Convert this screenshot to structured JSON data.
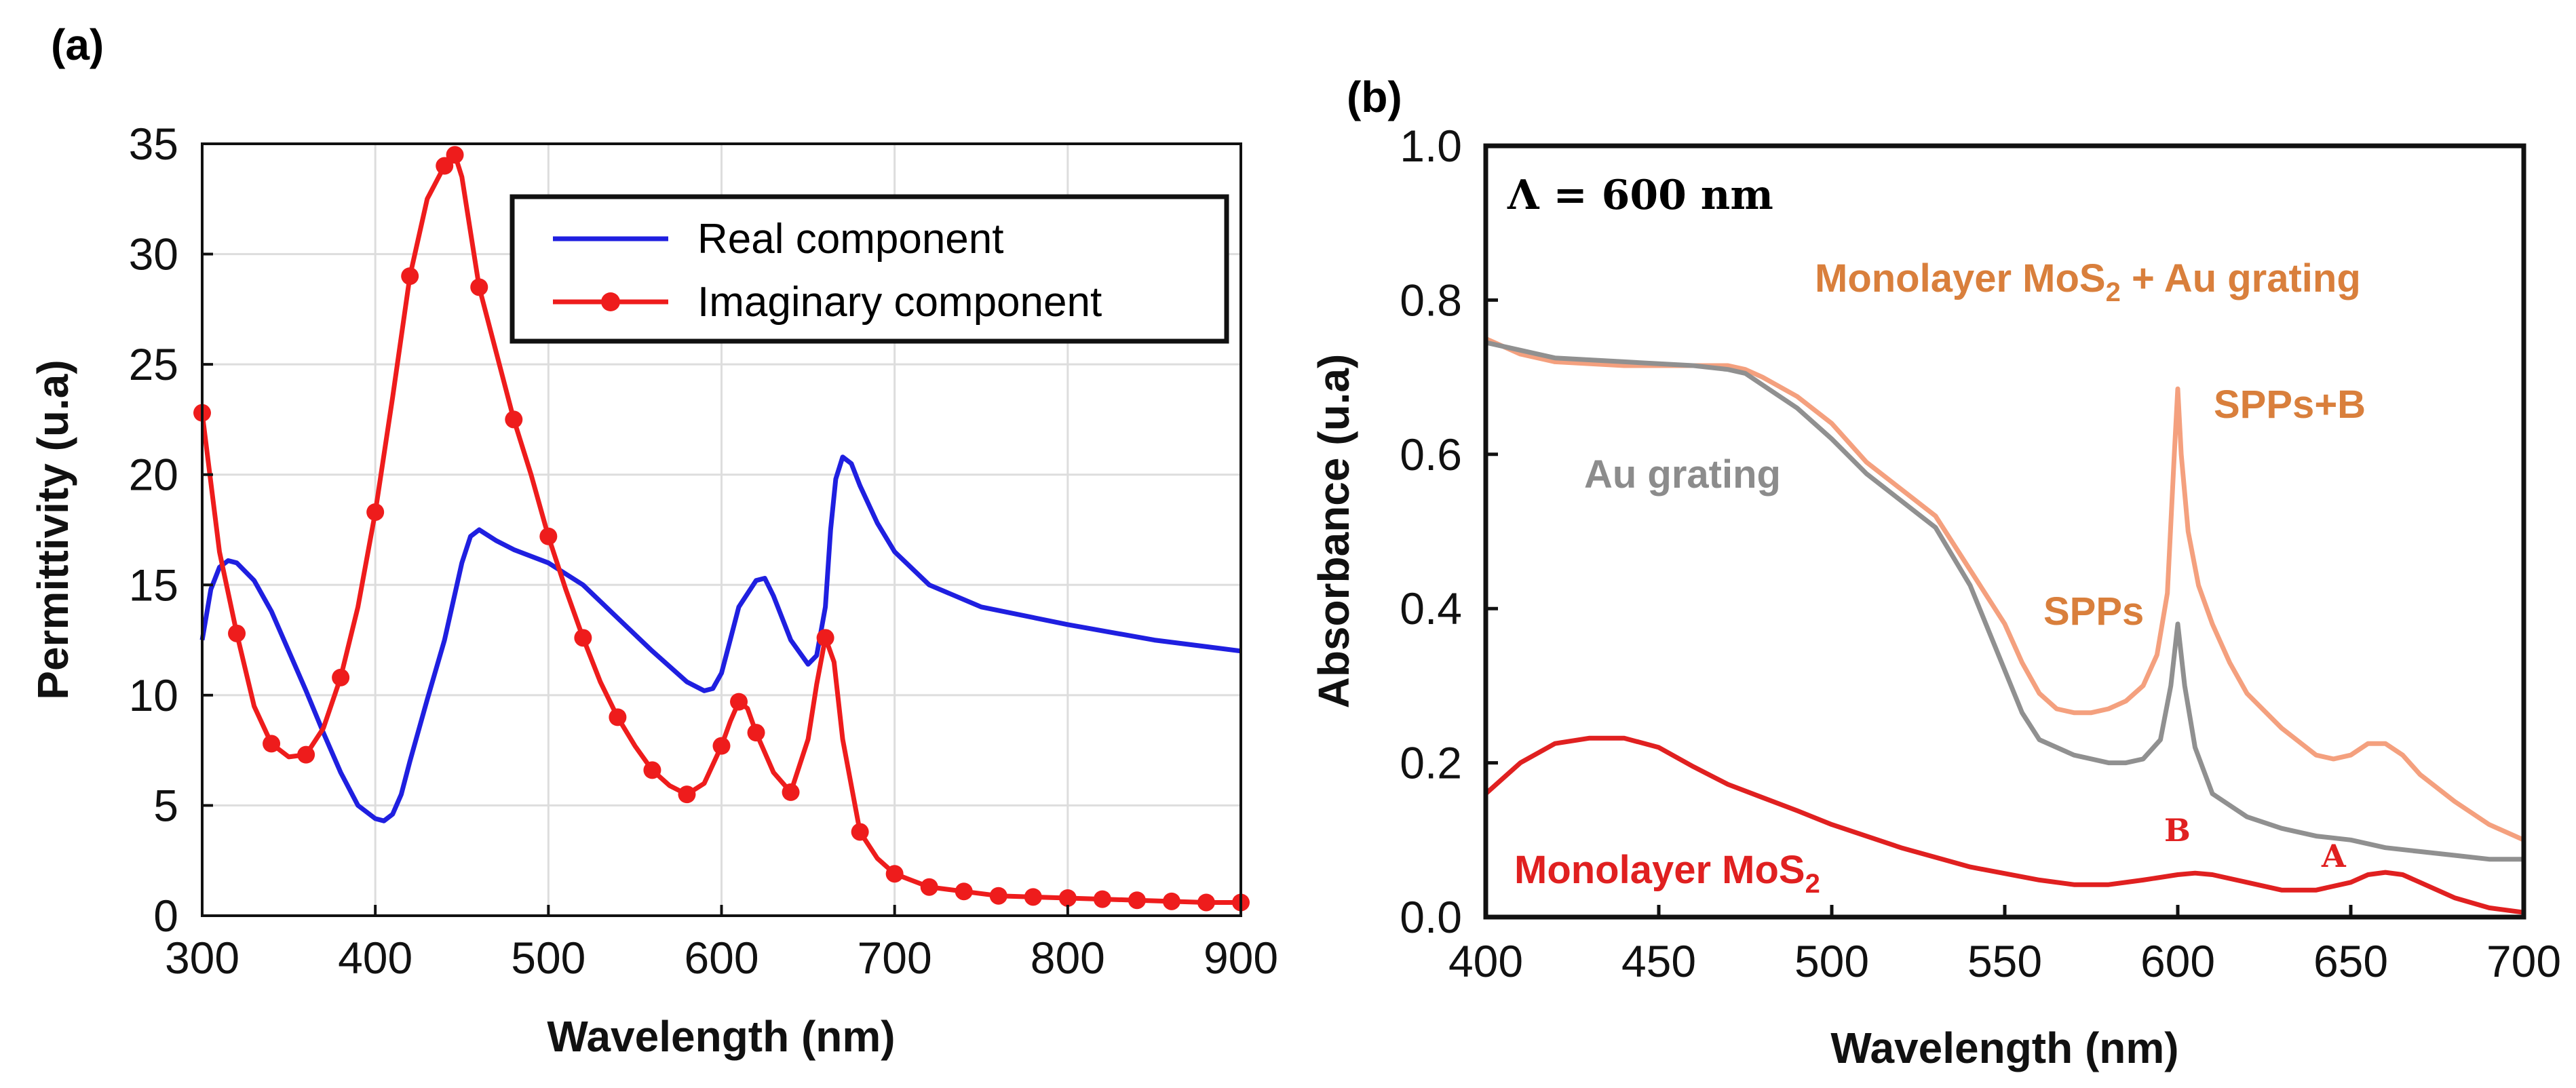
{
  "chart_data": [
    {
      "panel": "(a)",
      "type": "line",
      "title": "",
      "xlabel": "Wavelength (nm)",
      "ylabel": "Permittivity (u.a)",
      "xlim": [
        300,
        900
      ],
      "ylim": [
        0,
        35
      ],
      "xticks": [
        300,
        400,
        500,
        600,
        700,
        800,
        900
      ],
      "yticks": [
        0,
        5,
        10,
        15,
        20,
        25,
        30,
        35
      ],
      "legend": {
        "placement": "top-right",
        "entries": [
          "Real component",
          "Imaginary component"
        ]
      },
      "series": [
        {
          "name": "Real component",
          "color": "#1f1fe0",
          "marker": "none",
          "x": [
            300,
            305,
            310,
            315,
            320,
            330,
            340,
            350,
            360,
            370,
            380,
            390,
            400,
            405,
            410,
            415,
            420,
            430,
            440,
            450,
            455,
            460,
            470,
            480,
            500,
            520,
            540,
            560,
            580,
            590,
            595,
            600,
            605,
            610,
            620,
            625,
            630,
            640,
            650,
            655,
            660,
            663,
            666,
            670,
            675,
            680,
            690,
            700,
            720,
            750,
            800,
            850,
            900
          ],
          "values": [
            12.5,
            14.8,
            15.8,
            16.1,
            16.0,
            15.2,
            13.8,
            12.0,
            10.2,
            8.3,
            6.5,
            5.0,
            4.4,
            4.3,
            4.6,
            5.5,
            7.0,
            9.8,
            12.5,
            16.0,
            17.2,
            17.5,
            17.0,
            16.6,
            16.0,
            15.0,
            13.5,
            12.0,
            10.6,
            10.2,
            10.3,
            11.0,
            12.5,
            14.0,
            15.2,
            15.3,
            14.5,
            12.5,
            11.4,
            11.8,
            14.0,
            17.5,
            19.8,
            20.8,
            20.5,
            19.5,
            17.8,
            16.5,
            15.0,
            14.0,
            13.2,
            12.5,
            12.0
          ]
        },
        {
          "name": "Imaginary component",
          "color": "#ee1c1c",
          "marker": "circle",
          "x": [
            300,
            310,
            320,
            330,
            340,
            350,
            360,
            370,
            380,
            390,
            400,
            410,
            420,
            430,
            440,
            446,
            450,
            460,
            470,
            480,
            490,
            500,
            510,
            520,
            530,
            540,
            550,
            560,
            570,
            580,
            590,
            600,
            605,
            610,
            615,
            620,
            630,
            640,
            650,
            655,
            660,
            665,
            670,
            680,
            690,
            700,
            710,
            720,
            740,
            760,
            780,
            800,
            820,
            840,
            860,
            880,
            900
          ],
          "values": [
            22.8,
            16.5,
            12.8,
            9.5,
            7.8,
            7.2,
            7.3,
            8.5,
            10.8,
            14.0,
            18.3,
            23.5,
            29.0,
            32.5,
            34.0,
            34.5,
            33.5,
            28.5,
            25.5,
            22.5,
            20.0,
            17.2,
            14.8,
            12.6,
            10.6,
            9.0,
            7.7,
            6.6,
            5.9,
            5.5,
            6.0,
            7.7,
            8.8,
            9.7,
            9.4,
            8.3,
            6.5,
            5.6,
            8.0,
            10.5,
            12.6,
            11.5,
            8.0,
            3.8,
            2.6,
            1.9,
            1.6,
            1.3,
            1.1,
            0.9,
            0.85,
            0.8,
            0.75,
            0.7,
            0.65,
            0.6,
            0.6
          ],
          "marker_x": [
            300,
            320,
            340,
            360,
            380,
            400,
            420,
            440,
            446,
            460,
            480,
            500,
            520,
            540,
            560,
            580,
            600,
            610,
            620,
            640,
            660,
            680,
            700,
            720,
            740,
            760,
            780,
            800,
            820,
            840,
            860,
            880,
            900
          ],
          "marker_values": [
            22.8,
            12.8,
            7.8,
            7.3,
            10.8,
            18.3,
            29.0,
            34.0,
            34.5,
            28.5,
            22.5,
            17.2,
            12.6,
            9.0,
            6.6,
            5.5,
            7.7,
            9.7,
            8.3,
            5.6,
            12.6,
            3.8,
            1.9,
            1.3,
            1.1,
            0.9,
            0.85,
            0.8,
            0.75,
            0.7,
            0.65,
            0.6,
            0.6
          ]
        }
      ]
    },
    {
      "panel": "(b)",
      "type": "line",
      "title": "",
      "xlabel": "Wavelength (nm)",
      "ylabel": "Absorbance (u.a)",
      "xlim": [
        400,
        700
      ],
      "ylim": [
        0,
        1.0
      ],
      "xticks": [
        400,
        450,
        500,
        550,
        600,
        650,
        700
      ],
      "ytick_labels": [
        "0.0",
        "0.2",
        "0.4",
        "0.6",
        "0.8",
        "1.0"
      ],
      "yticks": [
        0,
        0.2,
        0.4,
        0.6,
        0.8,
        1.0
      ],
      "inset_text": "Λ = 600 nm",
      "series": [
        {
          "name": "Monolayer MoS2 + Au grating",
          "color": "#f4a07e",
          "x": [
            400,
            410,
            420,
            440,
            460,
            470,
            475,
            480,
            490,
            500,
            510,
            520,
            530,
            540,
            550,
            555,
            560,
            565,
            570,
            575,
            580,
            585,
            590,
            594,
            597,
            599,
            600,
            601,
            603,
            606,
            610,
            615,
            620,
            630,
            640,
            645,
            650,
            655,
            660,
            665,
            670,
            680,
            690,
            700
          ],
          "values": [
            0.75,
            0.73,
            0.72,
            0.715,
            0.715,
            0.715,
            0.71,
            0.7,
            0.675,
            0.64,
            0.59,
            0.555,
            0.52,
            0.45,
            0.38,
            0.33,
            0.29,
            0.27,
            0.265,
            0.265,
            0.27,
            0.28,
            0.3,
            0.34,
            0.42,
            0.6,
            0.685,
            0.6,
            0.5,
            0.43,
            0.38,
            0.33,
            0.29,
            0.245,
            0.21,
            0.205,
            0.21,
            0.225,
            0.225,
            0.21,
            0.185,
            0.15,
            0.12,
            0.1
          ]
        },
        {
          "name": "Au grating",
          "color": "#909090",
          "x": [
            400,
            410,
            420,
            440,
            460,
            470,
            475,
            480,
            490,
            500,
            510,
            520,
            530,
            540,
            550,
            555,
            560,
            570,
            580,
            585,
            590,
            595,
            598,
            600,
            602,
            605,
            610,
            620,
            630,
            640,
            650,
            660,
            670,
            680,
            690,
            700
          ],
          "values": [
            0.745,
            0.735,
            0.725,
            0.72,
            0.715,
            0.71,
            0.705,
            0.69,
            0.66,
            0.62,
            0.575,
            0.54,
            0.505,
            0.43,
            0.32,
            0.265,
            0.23,
            0.21,
            0.2,
            0.2,
            0.205,
            0.23,
            0.3,
            0.38,
            0.3,
            0.22,
            0.16,
            0.13,
            0.115,
            0.105,
            0.1,
            0.09,
            0.085,
            0.08,
            0.075,
            0.075
          ]
        },
        {
          "name": "Monolayer MoS2",
          "color": "#e02020",
          "x": [
            400,
            410,
            420,
            430,
            440,
            450,
            460,
            470,
            480,
            490,
            500,
            520,
            540,
            560,
            570,
            580,
            590,
            600,
            605,
            610,
            620,
            630,
            640,
            650,
            655,
            660,
            665,
            670,
            680,
            690,
            700
          ],
          "values": [
            0.16,
            0.2,
            0.225,
            0.232,
            0.232,
            0.22,
            0.195,
            0.172,
            0.155,
            0.138,
            0.12,
            0.09,
            0.065,
            0.048,
            0.042,
            0.042,
            0.048,
            0.055,
            0.057,
            0.055,
            0.045,
            0.035,
            0.035,
            0.045,
            0.055,
            0.058,
            0.055,
            0.045,
            0.025,
            0.012,
            0.006
          ]
        }
      ],
      "annotations": [
        {
          "text": "Monolayer MoS",
          "sub": "2",
          "suffix": " + Au grating",
          "color": "#d97f3c"
        },
        {
          "text": "SPPs+B",
          "color": "#d97f3c"
        },
        {
          "text": "Au grating",
          "color": "#8c8c8c"
        },
        {
          "text": "SPPs",
          "color": "#d97f3c"
        },
        {
          "text": "B",
          "color": "#e02020"
        },
        {
          "text": "A",
          "color": "#e02020"
        },
        {
          "text": "Monolayer MoS",
          "sub": "2",
          "suffix": "",
          "color": "#e02020"
        }
      ]
    }
  ]
}
